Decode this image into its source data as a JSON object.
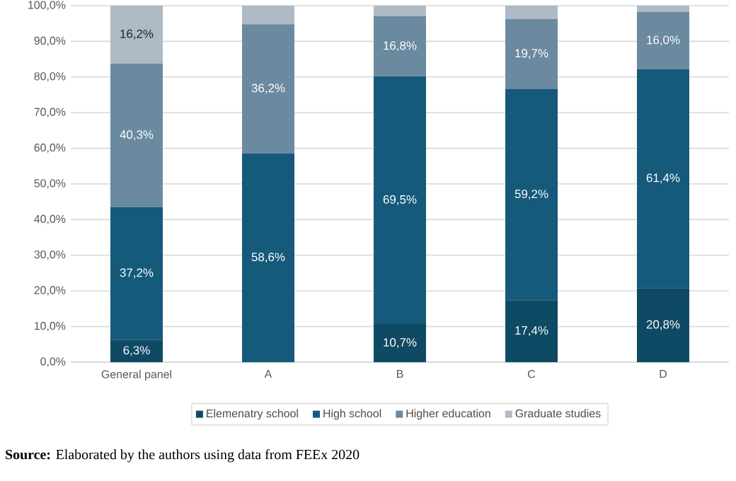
{
  "chart_data": {
    "type": "bar",
    "stacked": true,
    "categories": [
      "General panel",
      "A",
      "B",
      "C",
      "D"
    ],
    "series": [
      {
        "name": "Elemenatry school",
        "color": "#0f4a64",
        "values": [
          6.3,
          0,
          10.7,
          17.4,
          20.8
        ],
        "value_labels": [
          "6,3%",
          null,
          "10,7%",
          "17,4%",
          "20,8%"
        ]
      },
      {
        "name": "High school",
        "color": "#155a7a",
        "values": [
          37.2,
          58.6,
          69.5,
          59.2,
          61.4
        ],
        "value_labels": [
          "37,2%",
          "58,6%",
          "69,5%",
          "59,2%",
          "61,4%"
        ]
      },
      {
        "name": "Higher education",
        "color": "#6b8aa0",
        "values": [
          40.3,
          36.2,
          16.8,
          19.7,
          16.0
        ],
        "value_labels": [
          "40,3%",
          "36,2%",
          "16,8%",
          "19,7%",
          "16,0%"
        ]
      },
      {
        "name": "Graduate studies",
        "color": "#aebac6",
        "values": [
          16.2,
          5.2,
          3.0,
          3.7,
          1.8
        ],
        "value_labels": [
          "16,2%",
          null,
          null,
          null,
          null
        ]
      }
    ],
    "ylim": [
      0,
      100
    ],
    "yticks": [
      {
        "value": 0,
        "label": "0,0%"
      },
      {
        "value": 10,
        "label": "10,0%"
      },
      {
        "value": 20,
        "label": "20,0%"
      },
      {
        "value": 30,
        "label": "30,0%"
      },
      {
        "value": 40,
        "label": "40,0%"
      },
      {
        "value": 50,
        "label": "50,0%"
      },
      {
        "value": 60,
        "label": "60,0%"
      },
      {
        "value": 70,
        "label": "70,0%"
      },
      {
        "value": 80,
        "label": "80,0%"
      },
      {
        "value": 90,
        "label": "90,0%"
      },
      {
        "value": 100,
        "label": "100,0%"
      }
    ],
    "grid": "y",
    "legend": "bottom",
    "annotations": [
      "**Source:** Elaborated by the authors using data from FEEx 2020"
    ]
  }
}
